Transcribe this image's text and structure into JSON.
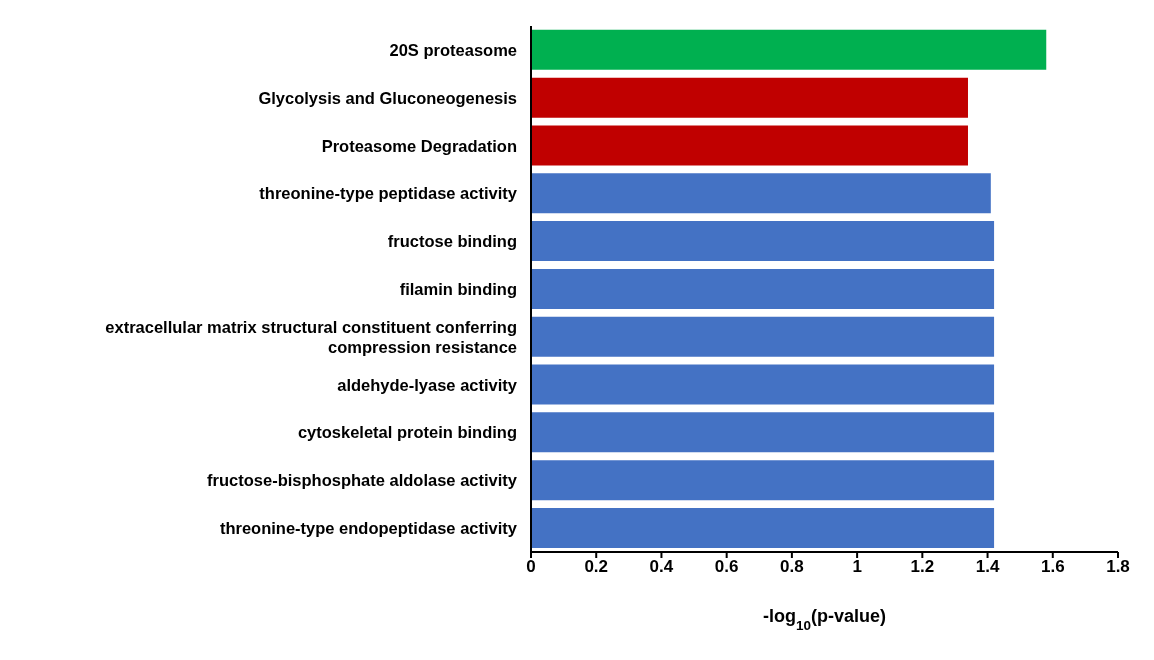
{
  "chart_data": {
    "type": "bar",
    "orientation": "horizontal",
    "xlabel": "-log$_{10}$(p-value)",
    "categories": [
      "20S proteasome",
      "Glycolysis and Gluconeogenesis",
      "Proteasome Degradation",
      "threonine-type peptidase activity",
      "fructose binding",
      "filamin binding",
      "extracellular matrix structural constituent conferring compression resistance",
      "aldehyde-lyase activity",
      "cytoskeletal protein binding",
      "fructose-bisphosphate aldolase activity",
      "threonine-type endopeptidase activity"
    ],
    "values": [
      1.58,
      1.34,
      1.34,
      1.41,
      1.42,
      1.42,
      1.42,
      1.42,
      1.42,
      1.42,
      1.42
    ],
    "colors": [
      "#00b050",
      "#c00000",
      "#c00000",
      "#4472c4",
      "#4472c4",
      "#4472c4",
      "#4472c4",
      "#4472c4",
      "#4472c4",
      "#4472c4",
      "#4472c4"
    ],
    "xlim": [
      0,
      1.8
    ],
    "xticks": [
      0,
      0.2,
      0.4,
      0.6,
      0.8,
      1,
      1.2,
      1.4,
      1.6,
      1.8
    ],
    "grid": false,
    "legend": false
  }
}
